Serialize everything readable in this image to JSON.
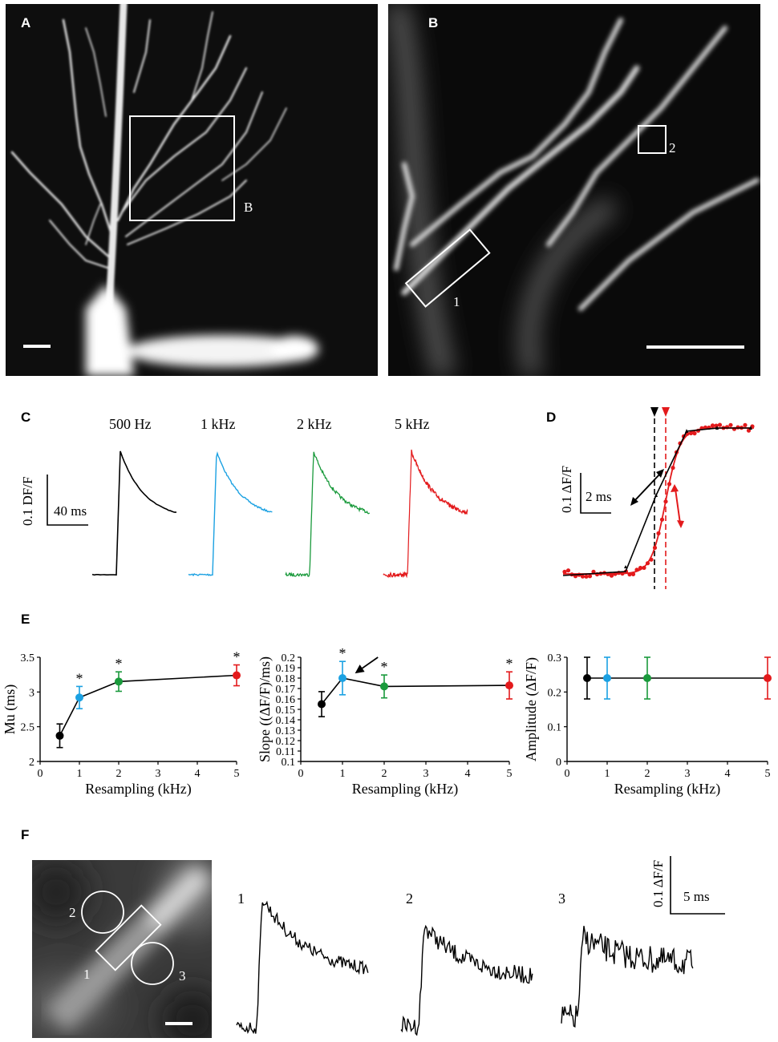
{
  "panels": {
    "A": {
      "letter": "A",
      "roi_label": "B"
    },
    "B": {
      "letter": "B",
      "roi_labels": [
        "1",
        "2"
      ]
    },
    "C": {
      "letter": "C",
      "traces": [
        {
          "label": "500 Hz",
          "color": "#000000"
        },
        {
          "label": "1 kHz",
          "color": "#1ba1e2"
        },
        {
          "label": "2 kHz",
          "color": "#1a9a3c"
        },
        {
          "label": "5 kHz",
          "color": "#e31a1c"
        }
      ],
      "scale_y": "0.1 DF/F",
      "scale_x": "40 ms"
    },
    "D": {
      "letter": "D",
      "scale_y": "0.1 ΔF/F",
      "scale_x": "2 ms"
    },
    "E": {
      "letter": "E"
    },
    "F": {
      "letter": "F",
      "roi_labels": [
        "1",
        "2",
        "3"
      ],
      "trace_labels": [
        "1",
        "2",
        "3"
      ],
      "scale_y": "0.1 ΔF/F",
      "scale_x": "5 ms"
    }
  },
  "chart_data": [
    {
      "type": "line",
      "ylabel": "Mu (ms)",
      "xlabel": "Resampling (kHz)",
      "xlim": [
        0,
        5
      ],
      "ylim": [
        2,
        3.5
      ],
      "xticks": [
        "0",
        "1",
        "2",
        "3",
        "4",
        "5"
      ],
      "yticks": [
        "2",
        "2.5",
        "3",
        "3.5"
      ],
      "x": [
        0.5,
        1,
        2,
        5
      ],
      "values": [
        2.37,
        2.92,
        3.15,
        3.24
      ],
      "errors": [
        0.17,
        0.16,
        0.14,
        0.15
      ],
      "point_colors": [
        "#000000",
        "#1ba1e2",
        "#1a9a3c",
        "#e31a1c"
      ],
      "markers": [
        "",
        "*",
        "*",
        "*"
      ]
    },
    {
      "type": "line",
      "ylabel": "Slope ((ΔF/F)/ms)",
      "xlabel": "Resampling (kHz)",
      "xlim": [
        0,
        5
      ],
      "ylim": [
        0.1,
        0.2
      ],
      "xticks": [
        "0",
        "1",
        "2",
        "3",
        "4",
        "5"
      ],
      "yticks": [
        "0.1",
        "0.11",
        "0.12",
        "0.13",
        "0.14",
        "0.15",
        "0.16",
        "0.17",
        "0.18",
        "0.19",
        "0.2"
      ],
      "x": [
        0.5,
        1,
        2,
        5
      ],
      "values": [
        0.155,
        0.18,
        0.172,
        0.173
      ],
      "errors": [
        0.012,
        0.016,
        0.011,
        0.013
      ],
      "point_colors": [
        "#000000",
        "#1ba1e2",
        "#1a9a3c",
        "#e31a1c"
      ],
      "markers": [
        "",
        "*",
        "*",
        "*"
      ]
    },
    {
      "type": "line",
      "ylabel": "Amplitude (ΔF/F)",
      "xlabel": "Resampling (kHz)",
      "xlim": [
        0,
        5
      ],
      "ylim": [
        0,
        0.3
      ],
      "xticks": [
        "0",
        "1",
        "2",
        "3",
        "4",
        "5"
      ],
      "yticks": [
        "0",
        "0.1",
        "0.2",
        "0.3"
      ],
      "x": [
        0.5,
        1,
        2,
        5
      ],
      "values": [
        0.24,
        0.24,
        0.24,
        0.24
      ],
      "errors": [
        0.06,
        0.06,
        0.06,
        0.06
      ],
      "point_colors": [
        "#000000",
        "#1ba1e2",
        "#1a9a3c",
        "#e31a1c"
      ],
      "markers": [
        "",
        "",
        "",
        ""
      ]
    }
  ]
}
